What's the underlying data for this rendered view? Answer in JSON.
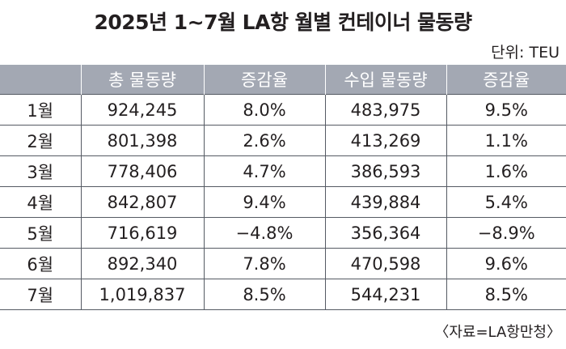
{
  "title": "2025년 1~7월 LA항 월별 컨테이너 물동량",
  "unit": "단위: TEU",
  "source": "〈자료=LA항만청〉",
  "columns": [
    "",
    "총 물동량",
    "증감율",
    "수입 물동량",
    "증감율"
  ],
  "rows": [
    {
      "month": "1월",
      "total": "924,245",
      "total_change": "8.0%",
      "import": "483,975",
      "import_change": "9.5%"
    },
    {
      "month": "2월",
      "total": "801,398",
      "total_change": "2.6%",
      "import": "413,269",
      "import_change": "1.1%"
    },
    {
      "month": "3월",
      "total": "778,406",
      "total_change": "4.7%",
      "import": "386,593",
      "import_change": "1.6%"
    },
    {
      "month": "4월",
      "total": "842,807",
      "total_change": "9.4%",
      "import": "439,884",
      "import_change": "5.4%"
    },
    {
      "month": "5월",
      "total": "716,619",
      "total_change": "−4.8%",
      "import": "356,364",
      "import_change": "−8.9%"
    },
    {
      "month": "6월",
      "total": "892,340",
      "total_change": "7.8%",
      "import": "470,598",
      "import_change": "9.6%"
    },
    {
      "month": "7월",
      "total": "1,019,837",
      "total_change": "8.5%",
      "import": "544,231",
      "import_change": "8.5%"
    }
  ]
}
